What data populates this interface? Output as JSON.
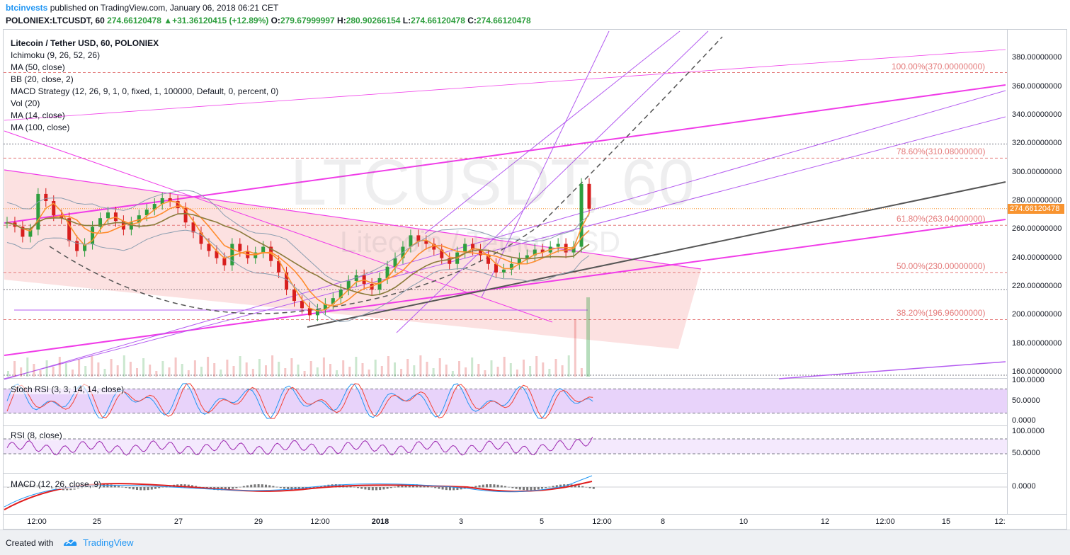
{
  "header": {
    "author": "btcinvests",
    "published": "published on TradingView.com, January 06, 2018 06:21 CET",
    "symbol": "POLONIEX:LTCUSDT, 60",
    "last": "274.66120478",
    "change_arrow": "▲",
    "change": "+31.36120415 (+12.89%)",
    "o_label": "O:",
    "o": "279.67999997",
    "h_label": "H:",
    "h": "280.90266154",
    "l_label": "L:",
    "l": "274.66120478",
    "c_label": "C:",
    "c": "274.66120478"
  },
  "legend": {
    "title": "Litecoin / Tether USD, 60, POLONIEX",
    "items": [
      "Ichimoku (9, 26, 52, 26)",
      "MA (50, close)",
      "BB (20, close, 2)",
      "MACD Strategy (12, 26, 9, 1, 0, fixed, 1, 100000, Default, 0, percent, 0)",
      "Vol (20)",
      "MA (14, close)",
      "MA (100, close)"
    ]
  },
  "watermark": {
    "symbol": "LTCUSDT, 60",
    "description": "Litecoin / Tether USD"
  },
  "panes": {
    "stoch_label": "Stoch RSI (3, 3, 14, 14, close)",
    "rsi_label": "RSI (8, close)",
    "macd_label": "MACD (12, 26, close, 9)"
  },
  "price_axis": [
    "380.00000000",
    "360.00000000",
    "340.00000000",
    "320.00000000",
    "300.00000000",
    "280.00000000",
    "260.00000000",
    "240.00000000",
    "220.00000000",
    "200.00000000",
    "180.00000000",
    "160.00000000"
  ],
  "last_price_label": "274.66120478",
  "stoch_axis": [
    "100.0000",
    "50.0000",
    "0.0000"
  ],
  "rsi_axis": [
    "100.0000",
    "50.0000"
  ],
  "macd_axis": [
    "0.0000"
  ],
  "time_axis": [
    {
      "label": "12:00",
      "bold": false
    },
    {
      "label": "25",
      "bold": false
    },
    {
      "label": "27",
      "bold": false
    },
    {
      "label": "29",
      "bold": false
    },
    {
      "label": "12:00",
      "bold": false
    },
    {
      "label": "2018",
      "bold": true
    },
    {
      "label": "3",
      "bold": false
    },
    {
      "label": "5",
      "bold": false
    },
    {
      "label": "12:00",
      "bold": false
    },
    {
      "label": "8",
      "bold": false
    },
    {
      "label": "10",
      "bold": false
    },
    {
      "label": "12",
      "bold": false
    },
    {
      "label": "12:00",
      "bold": false
    },
    {
      "label": "15",
      "bold": false
    },
    {
      "label": "12:",
      "bold": false
    }
  ],
  "fib_levels": [
    {
      "label": "100.00%(370.00000000)",
      "price": 370
    },
    {
      "label": "78.60%(310.08000000)",
      "price": 310.08
    },
    {
      "label": "61.80%(263.04000000)",
      "price": 263.04
    },
    {
      "label": "50.00%(230.00000000)",
      "price": 230
    },
    {
      "label": "38.20%(196.96000000)",
      "price": 196.96
    }
  ],
  "colors": {
    "up": "#2e9e3e",
    "down": "#d81e1e",
    "fib": "#e47b7b",
    "magenta": "#f03ce8",
    "violet": "#b45cf0",
    "last_price": "#f89430",
    "brand": "#2196f3"
  },
  "footer": {
    "made_with": "Created with",
    "brand": "TradingView"
  },
  "chart_data": {
    "type": "line",
    "title": "Litecoin / Tether USD, 60, POLONIEX",
    "ylim": [
      155,
      395
    ],
    "y_ticks": [
      160,
      180,
      200,
      220,
      240,
      260,
      280,
      300,
      320,
      340,
      360,
      380
    ],
    "x_ticks": [
      "12:00",
      "25",
      "27",
      "29",
      "12:00",
      "2018",
      "3",
      "5",
      "12:00",
      "8",
      "10",
      "12",
      "12:00",
      "15",
      "12:"
    ],
    "last_price": 274.66120478,
    "series": [
      {
        "values": [
          265,
          262,
          255,
          260,
          285,
          280,
          270,
          268,
          252,
          245,
          250,
          262,
          268,
          272,
          266,
          260,
          265,
          270,
          274,
          278,
          282,
          280,
          275,
          265,
          258,
          250,
          245,
          240,
          235,
          250,
          245,
          240,
          244,
          248,
          238,
          230,
          218,
          210,
          205,
          200,
          204,
          208,
          212,
          218,
          224,
          228,
          222,
          218,
          226,
          234,
          240,
          248,
          256,
          252,
          250,
          246,
          240,
          236,
          244,
          250,
          246,
          242,
          236,
          230,
          232,
          236,
          240,
          242,
          246,
          244,
          248,
          250,
          244,
          248,
          292,
          274.66
        ]
      }
    ],
    "stoch_rsi": {
      "ylim": [
        0,
        100
      ],
      "bands": [
        20,
        80
      ]
    },
    "rsi": {
      "ylim": [
        20,
        100
      ],
      "bands": [
        50,
        80
      ]
    }
  }
}
